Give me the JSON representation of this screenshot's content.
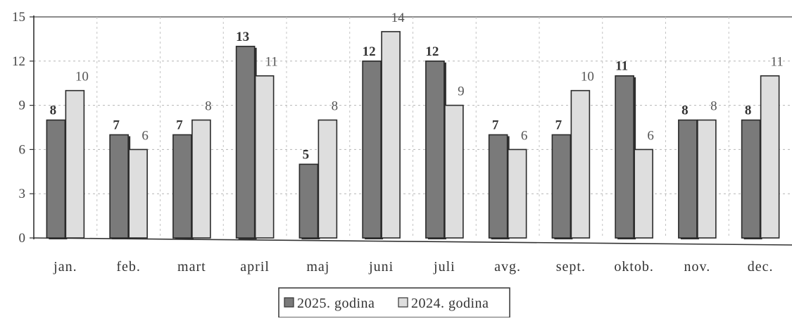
{
  "chart_data": {
    "type": "bar",
    "categories": [
      "jan.",
      "feb.",
      "mart",
      "april",
      "maj",
      "juni",
      "juli",
      "avg.",
      "sept.",
      "oktob.",
      "nov.",
      "dec."
    ],
    "series": [
      {
        "name": "2025. godina",
        "values": [
          8,
          7,
          7,
          13,
          5,
          12,
          12,
          7,
          7,
          11,
          8,
          8
        ],
        "labels": [
          "8",
          "7",
          "7",
          "13",
          "5",
          "12",
          "12",
          "7",
          "7",
          "11",
          "8",
          "8"
        ],
        "color": "#7a7a7a"
      },
      {
        "name": "2024. godina",
        "values": [
          10,
          6,
          8,
          11,
          8,
          14,
          9,
          6,
          10,
          6,
          8,
          11
        ],
        "labels": [
          "10",
          "6",
          "8",
          "11",
          "8",
          "14",
          "9",
          "6",
          "10",
          "6",
          "8",
          "11"
        ],
        "color": "#dedede"
      }
    ],
    "ylim": [
      0,
      15
    ],
    "yticks": [
      "0",
      "3",
      "6",
      "9",
      "12",
      "15"
    ],
    "grid": true,
    "legend_position": "bottom-center"
  }
}
